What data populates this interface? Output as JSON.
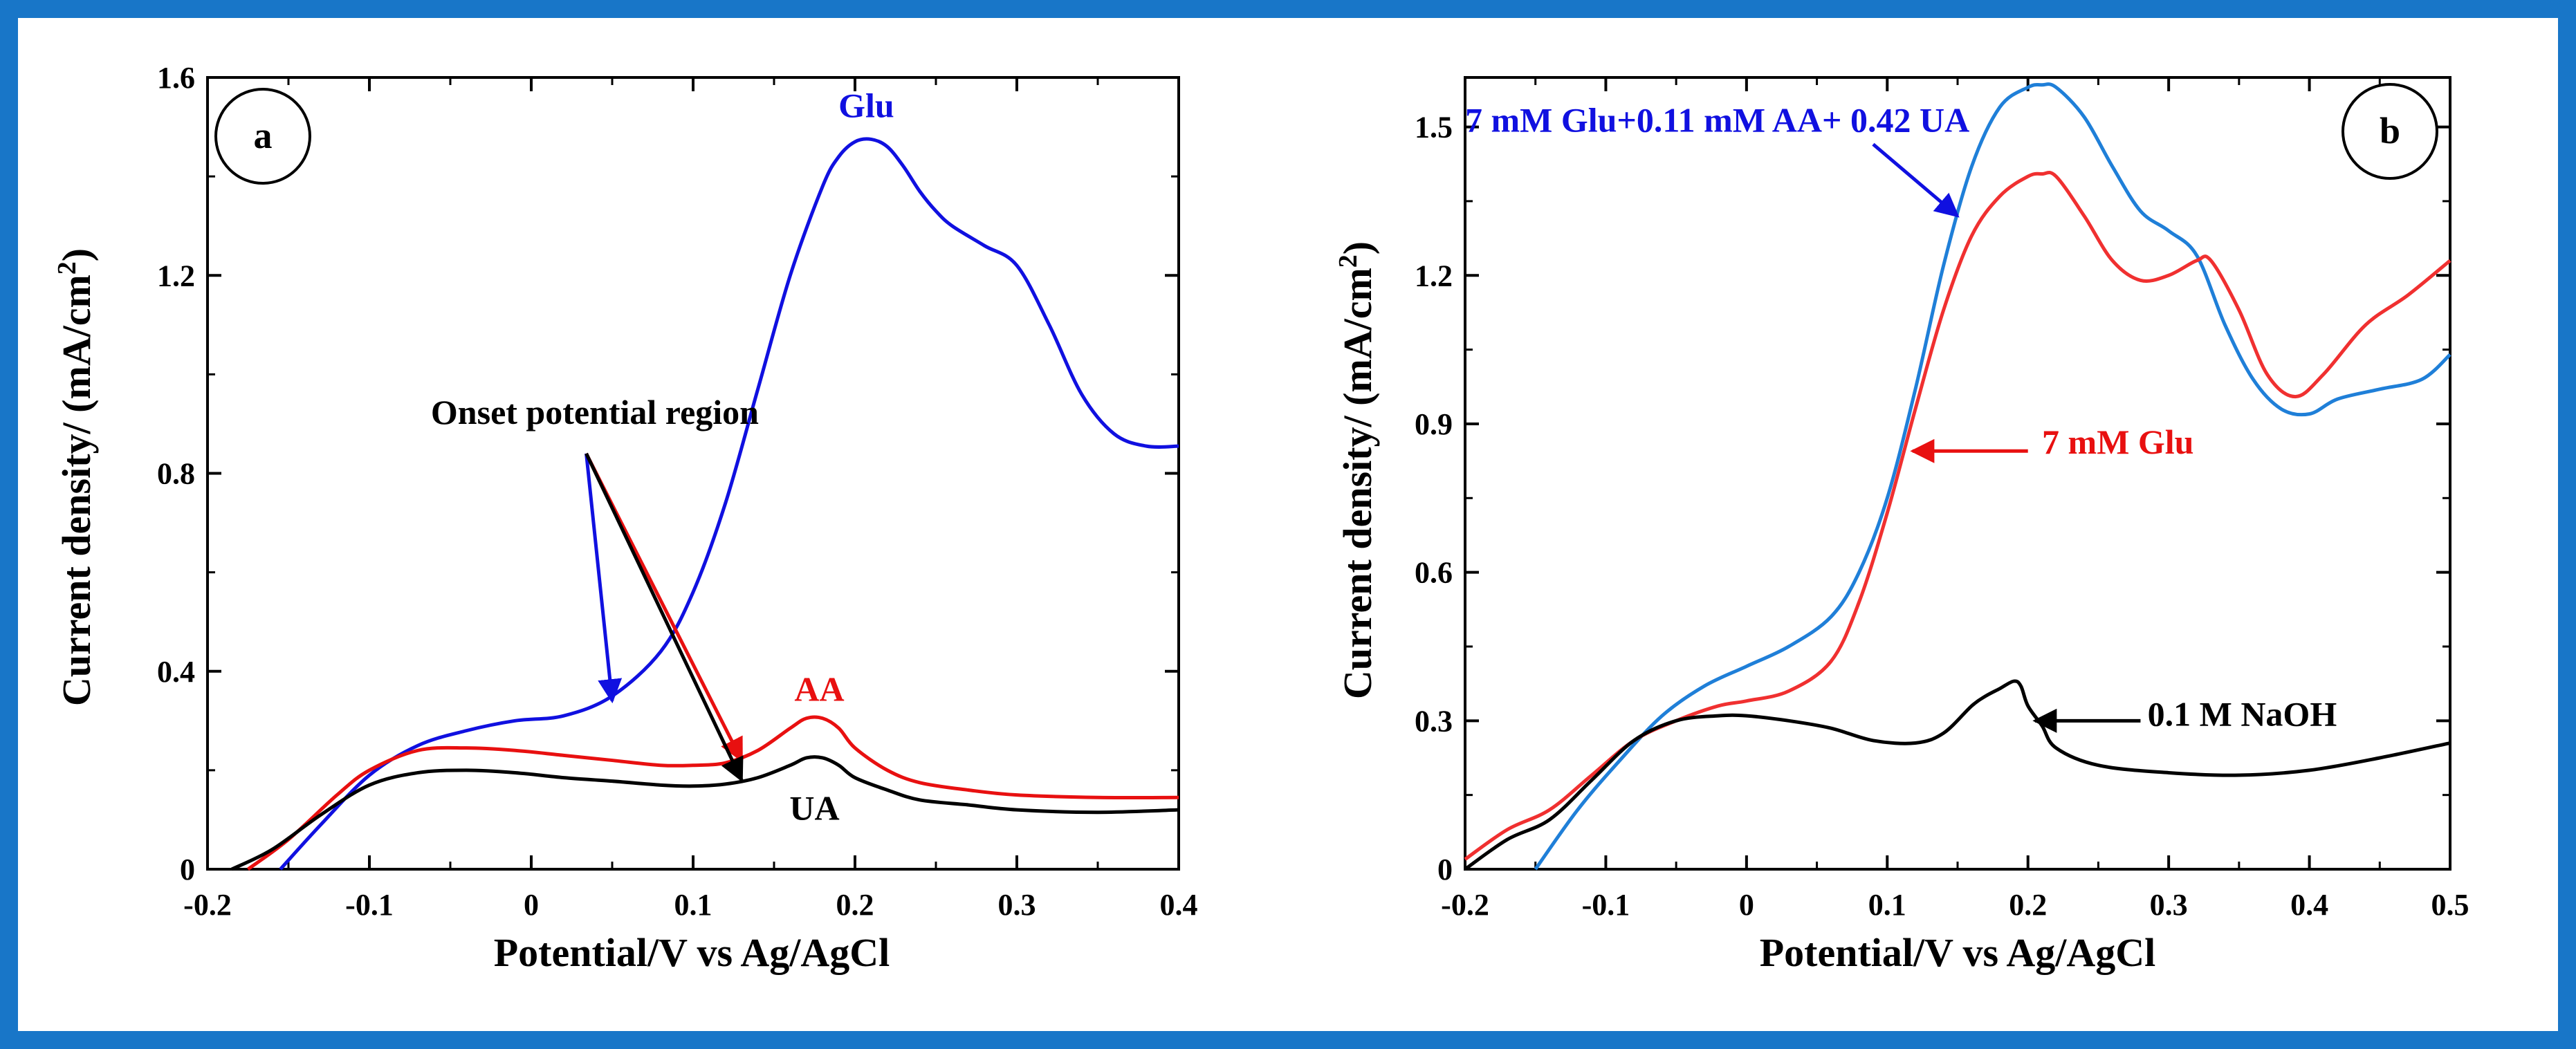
{
  "chart_data": [
    {
      "type": "line",
      "panel_label": "a",
      "xlabel": "Potential/V vs Ag/AgCl",
      "ylabel": "Current density/ (mA/cm",
      "ylabel_sup": "2",
      "ylabel_close": ")",
      "xlim": [
        -0.2,
        0.4
      ],
      "ylim": [
        0,
        1.6
      ],
      "xticks": [
        -0.2,
        -0.1,
        0,
        0.1,
        0.2,
        0.3,
        0.4
      ],
      "xtick_labels": [
        "-0.2",
        "-0.1",
        "0",
        "0.1",
        "0.2",
        "0.3",
        "0.4"
      ],
      "yticks": [
        0,
        0.4,
        0.8,
        1.2,
        1.6
      ],
      "ytick_labels": [
        "0",
        "0.4",
        "0.8",
        "1.2",
        "1.6"
      ],
      "series": [
        {
          "name": "Glu",
          "color": "#1010e0",
          "x": [
            -0.155,
            -0.13,
            -0.1,
            -0.07,
            -0.04,
            -0.01,
            0.02,
            0.05,
            0.08,
            0.1,
            0.12,
            0.14,
            0.16,
            0.18,
            0.19,
            0.2,
            0.21,
            0.22,
            0.23,
            0.24,
            0.25,
            0.26,
            0.28,
            0.3,
            0.32,
            0.34,
            0.36,
            0.38,
            0.4
          ],
          "y": [
            0,
            0.09,
            0.19,
            0.25,
            0.28,
            0.3,
            0.31,
            0.35,
            0.44,
            0.56,
            0.74,
            0.97,
            1.2,
            1.38,
            1.44,
            1.47,
            1.475,
            1.46,
            1.42,
            1.37,
            1.33,
            1.3,
            1.26,
            1.22,
            1.1,
            0.96,
            0.88,
            0.855,
            0.855
          ]
        },
        {
          "name": "AA",
          "color": "#e81010",
          "x": [
            -0.175,
            -0.15,
            -0.12,
            -0.1,
            -0.07,
            -0.04,
            -0.01,
            0.02,
            0.05,
            0.08,
            0.1,
            0.12,
            0.14,
            0.16,
            0.17,
            0.18,
            0.19,
            0.2,
            0.22,
            0.24,
            0.27,
            0.3,
            0.35,
            0.4
          ],
          "y": [
            0,
            0.06,
            0.15,
            0.2,
            0.24,
            0.245,
            0.24,
            0.23,
            0.22,
            0.21,
            0.21,
            0.215,
            0.24,
            0.285,
            0.305,
            0.305,
            0.285,
            0.245,
            0.2,
            0.175,
            0.16,
            0.15,
            0.145,
            0.145
          ]
        },
        {
          "name": "UA",
          "color": "#000000",
          "x": [
            -0.185,
            -0.16,
            -0.13,
            -0.1,
            -0.07,
            -0.04,
            -0.01,
            0.02,
            0.05,
            0.08,
            0.1,
            0.12,
            0.14,
            0.16,
            0.17,
            0.18,
            0.19,
            0.2,
            0.22,
            0.24,
            0.27,
            0.3,
            0.35,
            0.4
          ],
          "y": [
            0,
            0.04,
            0.11,
            0.17,
            0.195,
            0.2,
            0.195,
            0.185,
            0.178,
            0.17,
            0.168,
            0.172,
            0.185,
            0.21,
            0.225,
            0.225,
            0.21,
            0.185,
            0.16,
            0.14,
            0.13,
            0.12,
            0.115,
            0.12
          ]
        }
      ],
      "annotations": [
        {
          "text": "Glu",
          "color": "#1010e0",
          "x": 0.207,
          "y": 1.52
        },
        {
          "text": "AA",
          "color": "#e81010",
          "x": 0.178,
          "y": 0.34
        },
        {
          "text": "UA",
          "color": "#000000",
          "x": 0.175,
          "y": 0.1
        },
        {
          "text": "Onset potential region",
          "color": "#000000",
          "x": -0.062,
          "y": 0.9
        }
      ],
      "arrows": [
        {
          "color": "#1010e0",
          "from": [
            0.034,
            0.84
          ],
          "to": [
            0.05,
            0.34
          ]
        },
        {
          "color": "#e81010",
          "from": [
            0.034,
            0.84
          ],
          "to": [
            0.13,
            0.22
          ]
        },
        {
          "color": "#000000",
          "from": [
            0.034,
            0.84
          ],
          "to": [
            0.13,
            0.18
          ]
        }
      ]
    },
    {
      "type": "line",
      "panel_label": "b",
      "xlabel": "Potential/V vs Ag/AgCl",
      "ylabel": "Current density/ (mA/cm",
      "ylabel_sup": "2",
      "ylabel_close": ")",
      "xlim": [
        -0.2,
        0.5
      ],
      "ylim": [
        0,
        1.6
      ],
      "xticks": [
        -0.2,
        -0.1,
        0,
        0.1,
        0.2,
        0.3,
        0.4,
        0.5
      ],
      "xtick_labels": [
        "-0.2",
        "-0.1",
        "0",
        "0.1",
        "0.2",
        "0.3",
        "0.4",
        "0.5"
      ],
      "yticks": [
        0,
        0.3,
        0.6,
        0.9,
        1.2,
        1.5
      ],
      "ytick_labels": [
        "0",
        "0.3",
        "0.6",
        "0.9",
        "1.2",
        "1.5"
      ],
      "series": [
        {
          "name": "7 mM Glu+0.11 mM AA+ 0.42 UA",
          "color": "#1f7fd8",
          "x": [
            -0.15,
            -0.12,
            -0.09,
            -0.06,
            -0.03,
            0,
            0.03,
            0.06,
            0.08,
            0.1,
            0.12,
            0.14,
            0.16,
            0.18,
            0.2,
            0.21,
            0.22,
            0.24,
            0.26,
            0.28,
            0.3,
            0.32,
            0.34,
            0.36,
            0.38,
            0.4,
            0.42,
            0.45,
            0.48,
            0.5
          ],
          "y": [
            0,
            0.12,
            0.22,
            0.31,
            0.37,
            0.41,
            0.45,
            0.51,
            0.6,
            0.75,
            0.97,
            1.22,
            1.42,
            1.54,
            1.58,
            1.585,
            1.58,
            1.52,
            1.42,
            1.33,
            1.29,
            1.24,
            1.1,
            0.99,
            0.93,
            0.92,
            0.95,
            0.97,
            0.99,
            1.04
          ]
        },
        {
          "name": "7 mM Glu",
          "color": "#f03030",
          "x": [
            -0.2,
            -0.17,
            -0.14,
            -0.11,
            -0.08,
            -0.05,
            -0.02,
            0,
            0.03,
            0.06,
            0.08,
            0.1,
            0.12,
            0.14,
            0.16,
            0.18,
            0.2,
            0.21,
            0.22,
            0.24,
            0.26,
            0.28,
            0.3,
            0.32,
            0.33,
            0.35,
            0.37,
            0.39,
            0.41,
            0.44,
            0.47,
            0.5
          ],
          "y": [
            0.02,
            0.08,
            0.12,
            0.19,
            0.26,
            0.3,
            0.33,
            0.34,
            0.36,
            0.42,
            0.54,
            0.72,
            0.93,
            1.13,
            1.28,
            1.36,
            1.4,
            1.405,
            1.4,
            1.32,
            1.23,
            1.19,
            1.2,
            1.23,
            1.23,
            1.13,
            1.0,
            0.955,
            1.0,
            1.1,
            1.16,
            1.23
          ]
        },
        {
          "name": "0.1 M NaOH",
          "color": "#000000",
          "x": [
            -0.2,
            -0.17,
            -0.14,
            -0.11,
            -0.08,
            -0.05,
            -0.02,
            0,
            0.03,
            0.06,
            0.09,
            0.12,
            0.14,
            0.16,
            0.17,
            0.18,
            0.19,
            0.195,
            0.2,
            0.21,
            0.22,
            0.25,
            0.3,
            0.35,
            0.4,
            0.45,
            0.5
          ],
          "y": [
            0,
            0.06,
            0.1,
            0.18,
            0.26,
            0.3,
            0.31,
            0.31,
            0.3,
            0.285,
            0.26,
            0.255,
            0.275,
            0.33,
            0.35,
            0.365,
            0.38,
            0.37,
            0.33,
            0.29,
            0.245,
            0.21,
            0.195,
            0.19,
            0.2,
            0.225,
            0.255
          ]
        }
      ],
      "annotations": [
        {
          "text": "7 mM Glu+0.11 mM AA+ 0.42 UA",
          "color": "#1010e0",
          "x": -0.2,
          "y": 1.49
        },
        {
          "text": "7 mM Glu",
          "color": "#e81010",
          "x": 0.21,
          "y": 0.84
        },
        {
          "text": "0.1 M NaOH",
          "color": "#000000",
          "x": 0.285,
          "y": 0.29
        }
      ],
      "arrows": [
        {
          "color": "#1010e0",
          "from": [
            0.09,
            1.465
          ],
          "to": [
            0.15,
            1.32
          ]
        },
        {
          "color": "#e81010",
          "from": [
            0.2,
            0.845
          ],
          "to": [
            0.118,
            0.845
          ]
        },
        {
          "color": "#000000",
          "from": [
            0.28,
            0.3
          ],
          "to": [
            0.205,
            0.3
          ]
        }
      ]
    }
  ]
}
